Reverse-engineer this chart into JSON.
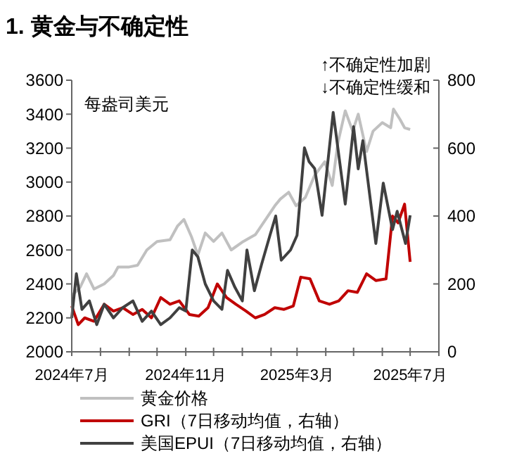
{
  "chart_data": {
    "type": "line",
    "title": "1. 黄金与不确定性",
    "annotations": [
      "每盎司美元",
      "↑不确定性加剧",
      "↓不确定性缓和"
    ],
    "xlim": [
      "2024-07-01",
      "2025-08-01"
    ],
    "xticks": [
      {
        "value": "2024-07-01",
        "label": "2024年7月"
      },
      {
        "value": "2024-08-01",
        "label": null
      },
      {
        "value": "2024-09-01",
        "label": null
      },
      {
        "value": "2024-10-01",
        "label": null
      },
      {
        "value": "2024-11-01",
        "label": "2024年11月"
      },
      {
        "value": "2024-12-01",
        "label": null
      },
      {
        "value": "2025-01-01",
        "label": null
      },
      {
        "value": "2025-02-01",
        "label": null
      },
      {
        "value": "2025-03-01",
        "label": "2025年3月"
      },
      {
        "value": "2025-04-01",
        "label": null
      },
      {
        "value": "2025-05-01",
        "label": null
      },
      {
        "value": "2025-06-01",
        "label": null
      },
      {
        "value": "2025-07-01",
        "label": "2025年7月"
      },
      {
        "value": "2025-08-01",
        "label": null
      }
    ],
    "ylim": [
      2000,
      3600
    ],
    "yticks": [
      2000,
      2200,
      2400,
      2600,
      2800,
      3000,
      3200,
      3400,
      3600
    ],
    "y2lim": [
      0,
      800
    ],
    "y2ticks": [
      0,
      200,
      400,
      600,
      800
    ],
    "legend": "bottom",
    "grid": false,
    "series": [
      {
        "name": "黄金价格",
        "color": "#c0c0c0",
        "x": [
          "2024-07-01",
          "2024-07-10",
          "2024-07-17",
          "2024-07-25",
          "2024-08-05",
          "2024-08-15",
          "2024-08-20",
          "2024-09-01",
          "2024-09-10",
          "2024-09-20",
          "2024-10-01",
          "2024-10-15",
          "2024-10-23",
          "2024-10-30",
          "2024-11-07",
          "2024-11-14",
          "2024-11-22",
          "2024-12-01",
          "2024-12-10",
          "2024-12-20",
          "2025-01-02",
          "2025-01-15",
          "2025-01-25",
          "2025-02-05",
          "2025-02-11",
          "2025-02-20",
          "2025-02-28",
          "2025-03-10",
          "2025-03-20",
          "2025-03-31",
          "2025-04-08",
          "2025-04-14",
          "2025-04-22",
          "2025-04-30",
          "2025-05-06",
          "2025-05-15",
          "2025-05-22",
          "2025-06-01",
          "2025-06-10",
          "2025-06-13",
          "2025-06-20",
          "2025-06-25",
          "2025-07-01"
        ],
        "values": [
          2330,
          2380,
          2460,
          2370,
          2400,
          2450,
          2500,
          2500,
          2510,
          2600,
          2650,
          2660,
          2740,
          2780,
          2680,
          2570,
          2700,
          2650,
          2700,
          2600,
          2650,
          2690,
          2770,
          2860,
          2900,
          2940,
          2860,
          2910,
          3040,
          3120,
          2980,
          3230,
          3420,
          3300,
          3400,
          3180,
          3300,
          3350,
          3320,
          3430,
          3370,
          3320,
          3310
        ]
      },
      {
        "name": "GRI（7日移动均值，右轴）",
        "color": "#c00000",
        "axis": "y2",
        "x": [
          "2024-07-01",
          "2024-07-08",
          "2024-07-15",
          "2024-07-25",
          "2024-08-05",
          "2024-08-15",
          "2024-08-25",
          "2024-09-05",
          "2024-09-15",
          "2024-09-25",
          "2024-10-05",
          "2024-10-15",
          "2024-10-25",
          "2024-11-05",
          "2024-11-15",
          "2024-11-25",
          "2024-12-05",
          "2024-12-15",
          "2024-12-25",
          "2025-01-05",
          "2025-01-15",
          "2025-01-25",
          "2025-02-05",
          "2025-02-15",
          "2025-02-25",
          "2025-03-05",
          "2025-03-15",
          "2025-03-25",
          "2025-04-05",
          "2025-04-15",
          "2025-04-25",
          "2025-05-05",
          "2025-05-15",
          "2025-05-25",
          "2025-06-05",
          "2025-06-12",
          "2025-06-18",
          "2025-06-25",
          "2025-07-01"
        ],
        "values": [
          135,
          80,
          100,
          90,
          140,
          120,
          130,
          110,
          125,
          100,
          160,
          140,
          150,
          110,
          105,
          130,
          200,
          160,
          140,
          120,
          100,
          110,
          130,
          125,
          135,
          220,
          215,
          150,
          140,
          150,
          180,
          175,
          230,
          210,
          215,
          400,
          380,
          435,
          265
        ]
      },
      {
        "name": "美国EPUI（7日移动均值，右轴）",
        "color": "#404040",
        "axis": "y2",
        "x": [
          "2024-07-01",
          "2024-07-06",
          "2024-07-12",
          "2024-07-20",
          "2024-07-28",
          "2024-08-05",
          "2024-08-15",
          "2024-08-25",
          "2024-09-05",
          "2024-09-15",
          "2024-09-25",
          "2024-10-05",
          "2024-10-15",
          "2024-10-25",
          "2024-11-01",
          "2024-11-08",
          "2024-11-14",
          "2024-11-22",
          "2024-12-01",
          "2024-12-10",
          "2024-12-16",
          "2024-12-24",
          "2025-01-01",
          "2025-01-06",
          "2025-01-14",
          "2025-01-22",
          "2025-01-31",
          "2025-02-06",
          "2025-02-12",
          "2025-02-22",
          "2025-03-01",
          "2025-03-09",
          "2025-03-14",
          "2025-03-20",
          "2025-03-28",
          "2025-04-09",
          "2025-04-22",
          "2025-05-01",
          "2025-05-06",
          "2025-05-11",
          "2025-05-25",
          "2025-06-02",
          "2025-06-12",
          "2025-06-17",
          "2025-06-26",
          "2025-07-01"
        ],
        "values": [
          100,
          230,
          125,
          150,
          80,
          140,
          100,
          130,
          150,
          90,
          120,
          80,
          100,
          130,
          120,
          300,
          280,
          200,
          150,
          125,
          240,
          190,
          150,
          300,
          180,
          260,
          345,
          400,
          270,
          300,
          343,
          601,
          560,
          540,
          402,
          705,
          435,
          663,
          539,
          622,
          319,
          497,
          360,
          414,
          319,
          402
        ]
      }
    ]
  }
}
